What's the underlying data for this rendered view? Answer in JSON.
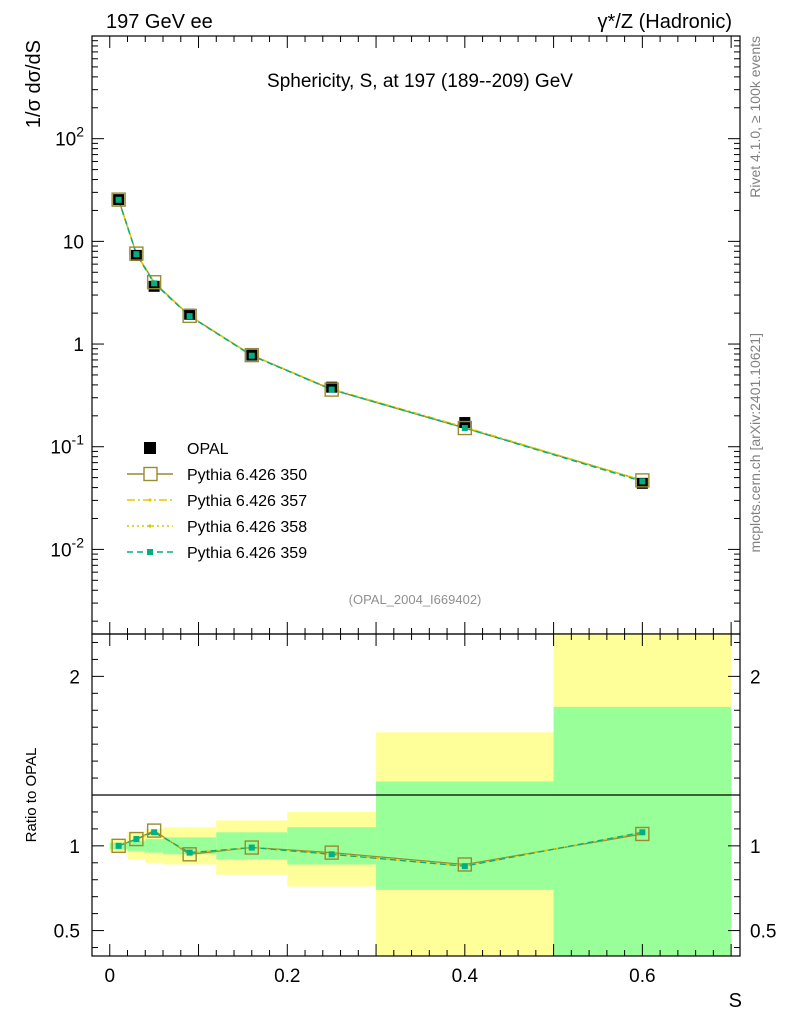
{
  "header": {
    "left": "197 GeV ee",
    "right": "γ*/Z (Hadronic)"
  },
  "side_labels": {
    "rivet": "Rivet 4.1.0, ≥ 100k events",
    "mcplots": "mcplots.cern.ch [arXiv:2401.10621]"
  },
  "chart_data": [
    {
      "type": "line",
      "panel": "main",
      "title": "Sphericity, S, at 197 (189--209) GeV",
      "watermark": "(OPAL_2004_I669402)",
      "xlabel": "S",
      "ylabel": "1/σ  dσ/dS",
      "yscale": "log",
      "xlim": [
        -0.02,
        0.71
      ],
      "ylim": [
        0.0015,
        1000
      ],
      "ytick_labels": [
        "10^-2",
        "10^-1",
        "1",
        "10",
        "10^2"
      ],
      "x": [
        0.01,
        0.03,
        0.05,
        0.09,
        0.16,
        0.25,
        0.4,
        0.6
      ],
      "series": [
        {
          "name": "OPAL",
          "style": "data",
          "color": "#000000",
          "values": [
            25.5,
            7.3,
            3.65,
            1.95,
            0.78,
            0.38,
            0.172,
            0.044
          ]
        },
        {
          "name": "Pythia 6.426 350",
          "style": "solid",
          "color": "#9a8a30",
          "values": [
            25.5,
            7.6,
            4.0,
            1.88,
            0.78,
            0.36,
            0.152,
            0.047
          ]
        },
        {
          "name": "Pythia 6.426 357",
          "style": "dashdot",
          "color": "#e8c800",
          "values": [
            25.5,
            7.55,
            3.95,
            1.88,
            0.78,
            0.365,
            0.155,
            0.047
          ]
        },
        {
          "name": "Pythia 6.426 358",
          "style": "dotted",
          "color": "#cccc00",
          "values": [
            25.5,
            7.55,
            3.95,
            1.88,
            0.78,
            0.365,
            0.155,
            0.047
          ]
        },
        {
          "name": "Pythia 6.426 359",
          "style": "dashed",
          "color": "#00b080",
          "values": [
            25.4,
            7.5,
            3.9,
            1.87,
            0.77,
            0.36,
            0.152,
            0.046
          ]
        }
      ],
      "legend": "bottom-left"
    },
    {
      "type": "line",
      "panel": "ratio",
      "xlabel": "S",
      "ylabel": "Ratio to OPAL",
      "xlim": [
        -0.02,
        0.71
      ],
      "ylim": [
        0.35,
        2.25
      ],
      "xtick_labels": [
        "0",
        "0.2",
        "0.4",
        "0.6"
      ],
      "ytick_labels": [
        "0.5",
        "1",
        "2"
      ],
      "bins": [
        [
          0.0,
          0.02
        ],
        [
          0.02,
          0.04
        ],
        [
          0.04,
          0.06
        ],
        [
          0.06,
          0.12
        ],
        [
          0.12,
          0.2
        ],
        [
          0.2,
          0.3
        ],
        [
          0.3,
          0.5
        ],
        [
          0.5,
          0.7
        ]
      ],
      "stat_band": [
        [
          0.98,
          1.02
        ],
        [
          0.97,
          1.03
        ],
        [
          0.96,
          1.04
        ],
        [
          0.95,
          1.05
        ],
        [
          0.92,
          1.08
        ],
        [
          0.89,
          1.11
        ],
        [
          0.74,
          1.38
        ],
        [
          0.35,
          1.82
        ]
      ],
      "total_band": [
        [
          0.96,
          1.04
        ],
        [
          0.92,
          1.08
        ],
        [
          0.9,
          1.1
        ],
        [
          0.89,
          1.11
        ],
        [
          0.83,
          1.15
        ],
        [
          0.76,
          1.2
        ],
        [
          0.35,
          1.67
        ],
        [
          0.35,
          2.25
        ]
      ],
      "x": [
        0.01,
        0.03,
        0.05,
        0.09,
        0.16,
        0.25,
        0.4,
        0.6
      ],
      "series": [
        {
          "name": "Pythia 6.426 350",
          "style": "solid",
          "color": "#9a8a30",
          "values": [
            1.0,
            1.04,
            1.09,
            0.95,
            0.99,
            0.96,
            0.89,
            1.07
          ]
        },
        {
          "name": "Pythia 6.426 357",
          "style": "dashdot",
          "color": "#e8c800",
          "values": [
            1.0,
            1.04,
            1.08,
            0.96,
            0.99,
            0.95,
            0.88,
            1.08
          ]
        },
        {
          "name": "Pythia 6.426 358",
          "style": "dotted",
          "color": "#cccc00",
          "values": [
            1.0,
            1.04,
            1.08,
            0.96,
            0.99,
            0.95,
            0.88,
            1.08
          ]
        },
        {
          "name": "Pythia 6.426 359",
          "style": "dashed",
          "color": "#00b080",
          "values": [
            1.0,
            1.04,
            1.08,
            0.96,
            0.99,
            0.95,
            0.88,
            1.08
          ]
        }
      ],
      "band_colors": {
        "stat": "#99ff99",
        "total": "#ffff99"
      }
    }
  ]
}
